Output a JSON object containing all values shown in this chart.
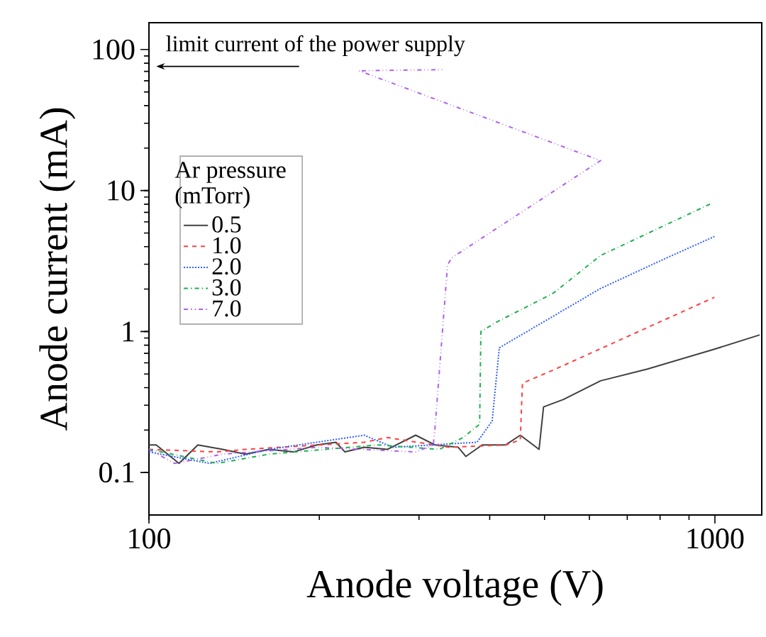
{
  "chart_data": {
    "type": "line",
    "xlabel": "Anode voltage (V)",
    "ylabel": "Anode current (mA)",
    "legend_title": "Ar pressure (mTorr)",
    "log": "xy",
    "xlim": [
      100,
      1210
    ],
    "ylim": [
      0.05,
      155
    ],
    "xticks": [
      100,
      1000
    ],
    "yticks": [
      0.1,
      1,
      10,
      100
    ],
    "legend": "left",
    "grid": false,
    "annotations": [
      "limit current of the power supply"
    ],
    "series": [
      {
        "name": "0.5",
        "color": "#404040",
        "line_style": "solid",
        "x": [
          100,
          103,
          113,
          122,
          135,
          148,
          163,
          180,
          198,
          214,
          222,
          240,
          264,
          296,
          320,
          352,
          363,
          388,
          427,
          453,
          489,
          498,
          540,
          628,
          760,
          998,
          1200
        ],
        "values": [
          0.157,
          0.157,
          0.116,
          0.157,
          0.146,
          0.135,
          0.146,
          0.14,
          0.157,
          0.164,
          0.14,
          0.151,
          0.146,
          0.184,
          0.157,
          0.151,
          0.13,
          0.157,
          0.157,
          0.184,
          0.146,
          0.292,
          0.33,
          0.447,
          0.542,
          0.75,
          0.946
        ]
      },
      {
        "name": "1.0",
        "color": "#ff4040",
        "line_style": "dashed",
        "x": [
          100,
          132,
          148,
          240,
          264,
          339,
          427,
          453,
          457,
          489,
          523,
          998
        ],
        "values": [
          0.146,
          0.14,
          0.146,
          0.164,
          0.177,
          0.151,
          0.157,
          0.17,
          0.43,
          0.483,
          0.542,
          1.75
        ]
      },
      {
        "name": "2.0",
        "color": "#3060ff",
        "line_style": "dotted",
        "x": [
          100,
          128,
          163,
          240,
          270,
          380,
          404,
          416,
          628,
          822,
          998
        ],
        "values": [
          0.14,
          0.116,
          0.146,
          0.184,
          0.151,
          0.164,
          0.232,
          0.767,
          2.02,
          3.33,
          4.72
        ]
      },
      {
        "name": "3.0",
        "color": "#20b050",
        "line_style": "dashdot",
        "x": [
          100,
          132,
          163,
          254,
          326,
          359,
          384,
          386,
          412,
          518,
          628,
          986
        ],
        "values": [
          0.146,
          0.116,
          0.135,
          0.157,
          0.146,
          0.177,
          0.22,
          1.0,
          1.17,
          1.87,
          3.46,
          8.1
        ]
      },
      {
        "name": "7.0",
        "color": "#b060f0",
        "line_style": "dashdotdot",
        "x": [
          100,
          111,
          135,
          198,
          296,
          318,
          320,
          337,
          343,
          628,
          235,
          333
        ],
        "values": [
          0.146,
          0.116,
          0.135,
          0.151,
          0.14,
          0.157,
          0.2,
          2.97,
          3.34,
          16.3,
          70.7,
          72
        ]
      }
    ]
  }
}
